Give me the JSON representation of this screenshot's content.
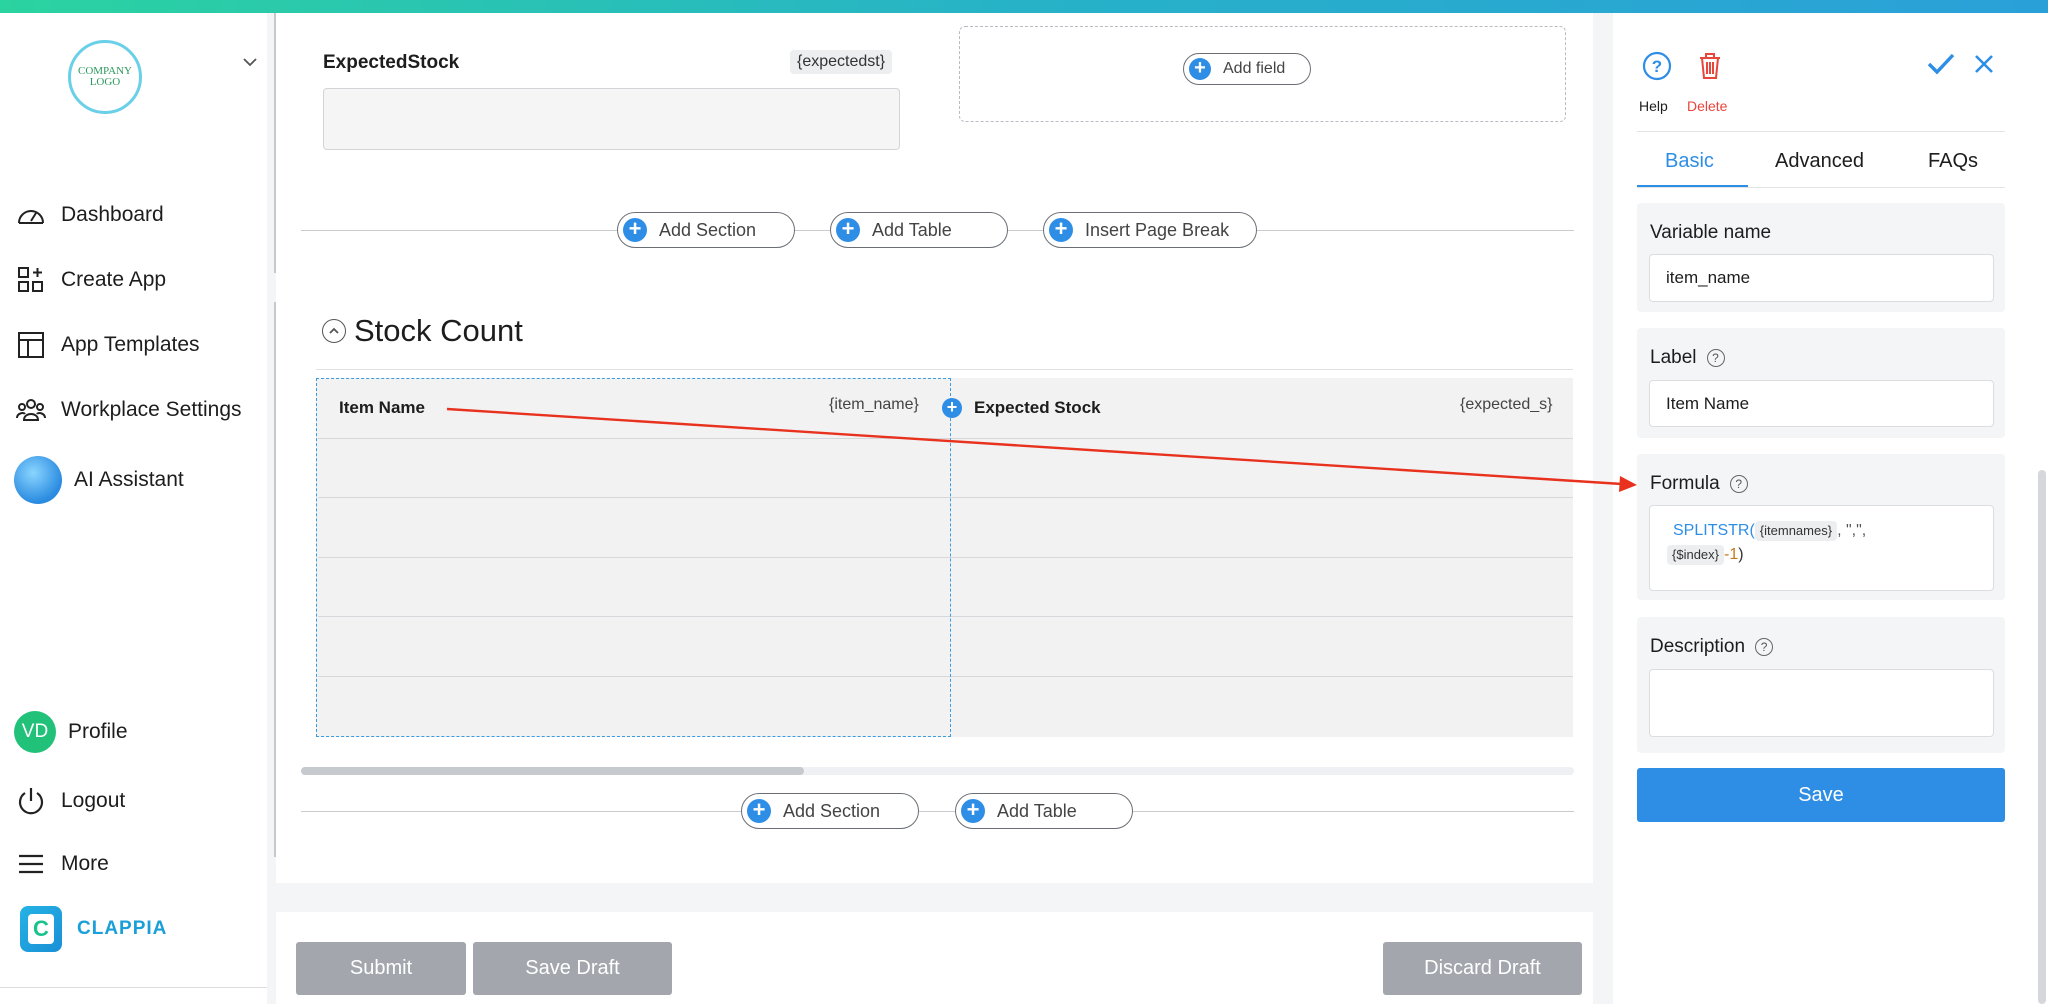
{
  "sidebar": {
    "logo_line1": "COMPANY",
    "logo_line2": "LOGO",
    "nav": [
      {
        "label": "Dashboard",
        "icon": "dashboard-icon"
      },
      {
        "label": "Create App",
        "icon": "create-app-icon"
      },
      {
        "label": "App Templates",
        "icon": "templates-icon"
      },
      {
        "label": "Workplace Settings",
        "icon": "people-icon"
      },
      {
        "label": "AI Assistant",
        "icon": "ai-assistant-icon"
      }
    ],
    "profile_initials": "VD",
    "profile_label": "Profile",
    "logout_label": "Logout",
    "more_label": "More",
    "brand": "CLAPPIA",
    "brand_letter": "C"
  },
  "canvas": {
    "field_label": "ExpectedStock",
    "field_tag": "{expectedst}",
    "add_field": "Add field",
    "add_section": "Add Section",
    "add_table": "Add Table",
    "insert_page_break": "Insert Page Break",
    "section_title": "Stock Count",
    "table": {
      "columns": [
        {
          "label": "Item Name",
          "tag": "{item_name}"
        },
        {
          "label": "Expected Stock",
          "tag": "{expected_s}"
        }
      ],
      "empty_rows": 5
    }
  },
  "footer": {
    "submit": "Submit",
    "save_draft": "Save Draft",
    "discard_draft": "Discard Draft"
  },
  "panel": {
    "help": "Help",
    "delete": "Delete",
    "tabs": [
      "Basic",
      "Advanced",
      "FAQs"
    ],
    "active_tab": "Basic",
    "variable_name_label": "Variable name",
    "variable_name_value": "item_name",
    "label_label": "Label",
    "label_value": "Item Name",
    "formula_label": "Formula",
    "formula": {
      "fn": "SPLITSTR(",
      "arg1": "{itemnames}",
      "sep": ", \",\",",
      "arg2": "{$index}",
      "minus": "-1",
      "close": ")"
    },
    "description_label": "Description",
    "description_value": "",
    "save": "Save",
    "help_mark": "?"
  },
  "colors": {
    "accent": "#2e8ee6",
    "delete": "#e8453c",
    "annotation_arrow": "#e8321e",
    "profile_avatar": "#22c17a"
  }
}
